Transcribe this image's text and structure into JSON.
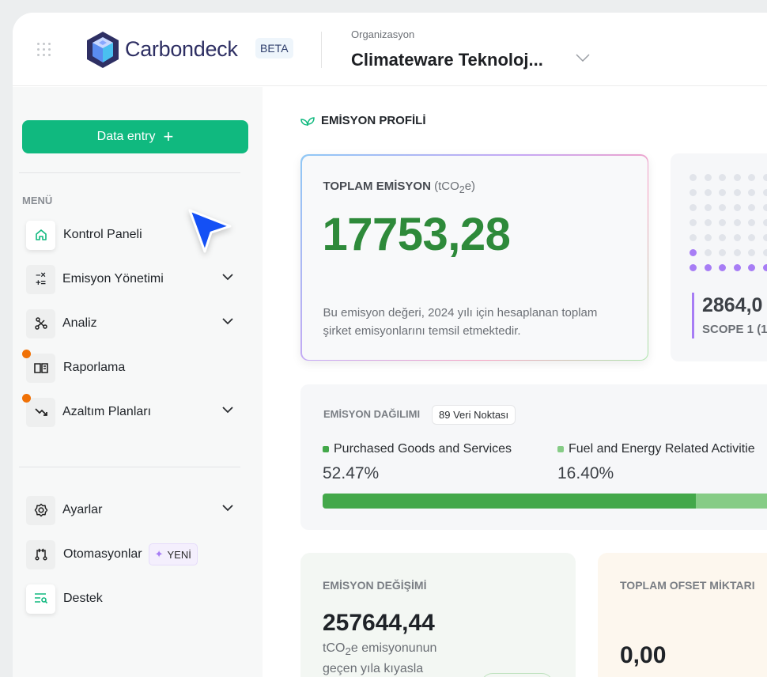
{
  "header": {
    "brand": "Carbondeck",
    "beta": "BETA",
    "org_label": "Organizasyon",
    "org_value": "Climateware Teknoloj..."
  },
  "sidebar": {
    "data_entry": "Data entry",
    "menu_label": "MENÜ",
    "items": [
      {
        "label": "Kontrol Paneli",
        "icon": "home-icon",
        "active": true
      },
      {
        "label": "Emisyon Yönetimi",
        "icon": "calculator-icon",
        "expandable": true
      },
      {
        "label": "Analiz",
        "icon": "graph-icon",
        "expandable": true
      },
      {
        "label": "Raporlama",
        "icon": "book-icon",
        "notification": true
      },
      {
        "label": "Azaltım Planları",
        "icon": "trend-down-icon",
        "expandable": true,
        "notification": true
      }
    ],
    "bottom_items": [
      {
        "label": "Ayarlar",
        "icon": "gear-icon",
        "expandable": true
      },
      {
        "label": "Otomasyonlar",
        "icon": "workflow-icon",
        "badge": "YENİ"
      },
      {
        "label": "Destek",
        "icon": "support-search-icon"
      }
    ]
  },
  "main": {
    "section_title": "EMİSYON PROFİLİ",
    "total": {
      "label": "TOPLAM EMİSYON",
      "unit_prefix": "(tCO",
      "unit_sub": "2",
      "unit_suffix": "e)",
      "value": "17753,28",
      "description": "Bu emisyon değeri, 2024 yılı için hesaplanan toplam şirket emisyonlarını temsil etmektedir."
    },
    "scope": {
      "value": "2864,0",
      "label": "SCOPE 1 (1",
      "accent": "#a77df5"
    },
    "distribution": {
      "label": "EMİSYON DAĞILIMI",
      "badge": "89 Veri Noktası",
      "segments": [
        {
          "name": "Purchased Goods and Services",
          "percent": "52.47%",
          "value": 52.47,
          "color": "#43a84a"
        },
        {
          "name": "Fuel and Energy Related Activitie",
          "percent": "16.40%",
          "value": 16.4,
          "color": "#86cc86"
        }
      ]
    },
    "change": {
      "label": "EMİSYON DEĞİŞİMİ",
      "value": "257644,44",
      "desc_prefix": "tCO",
      "desc_sub": "2",
      "desc_suffix": "e emisyonunun",
      "desc_line2": "geçen yıla kıyasla"
    },
    "offset": {
      "label": "TOPLAM OFSET MİKTARI",
      "value": "0,00"
    }
  },
  "colors": {
    "primary": "#10b97f",
    "accent_green": "#2e8a3a",
    "notification": "#f07106",
    "cursor": "#1450f5"
  }
}
